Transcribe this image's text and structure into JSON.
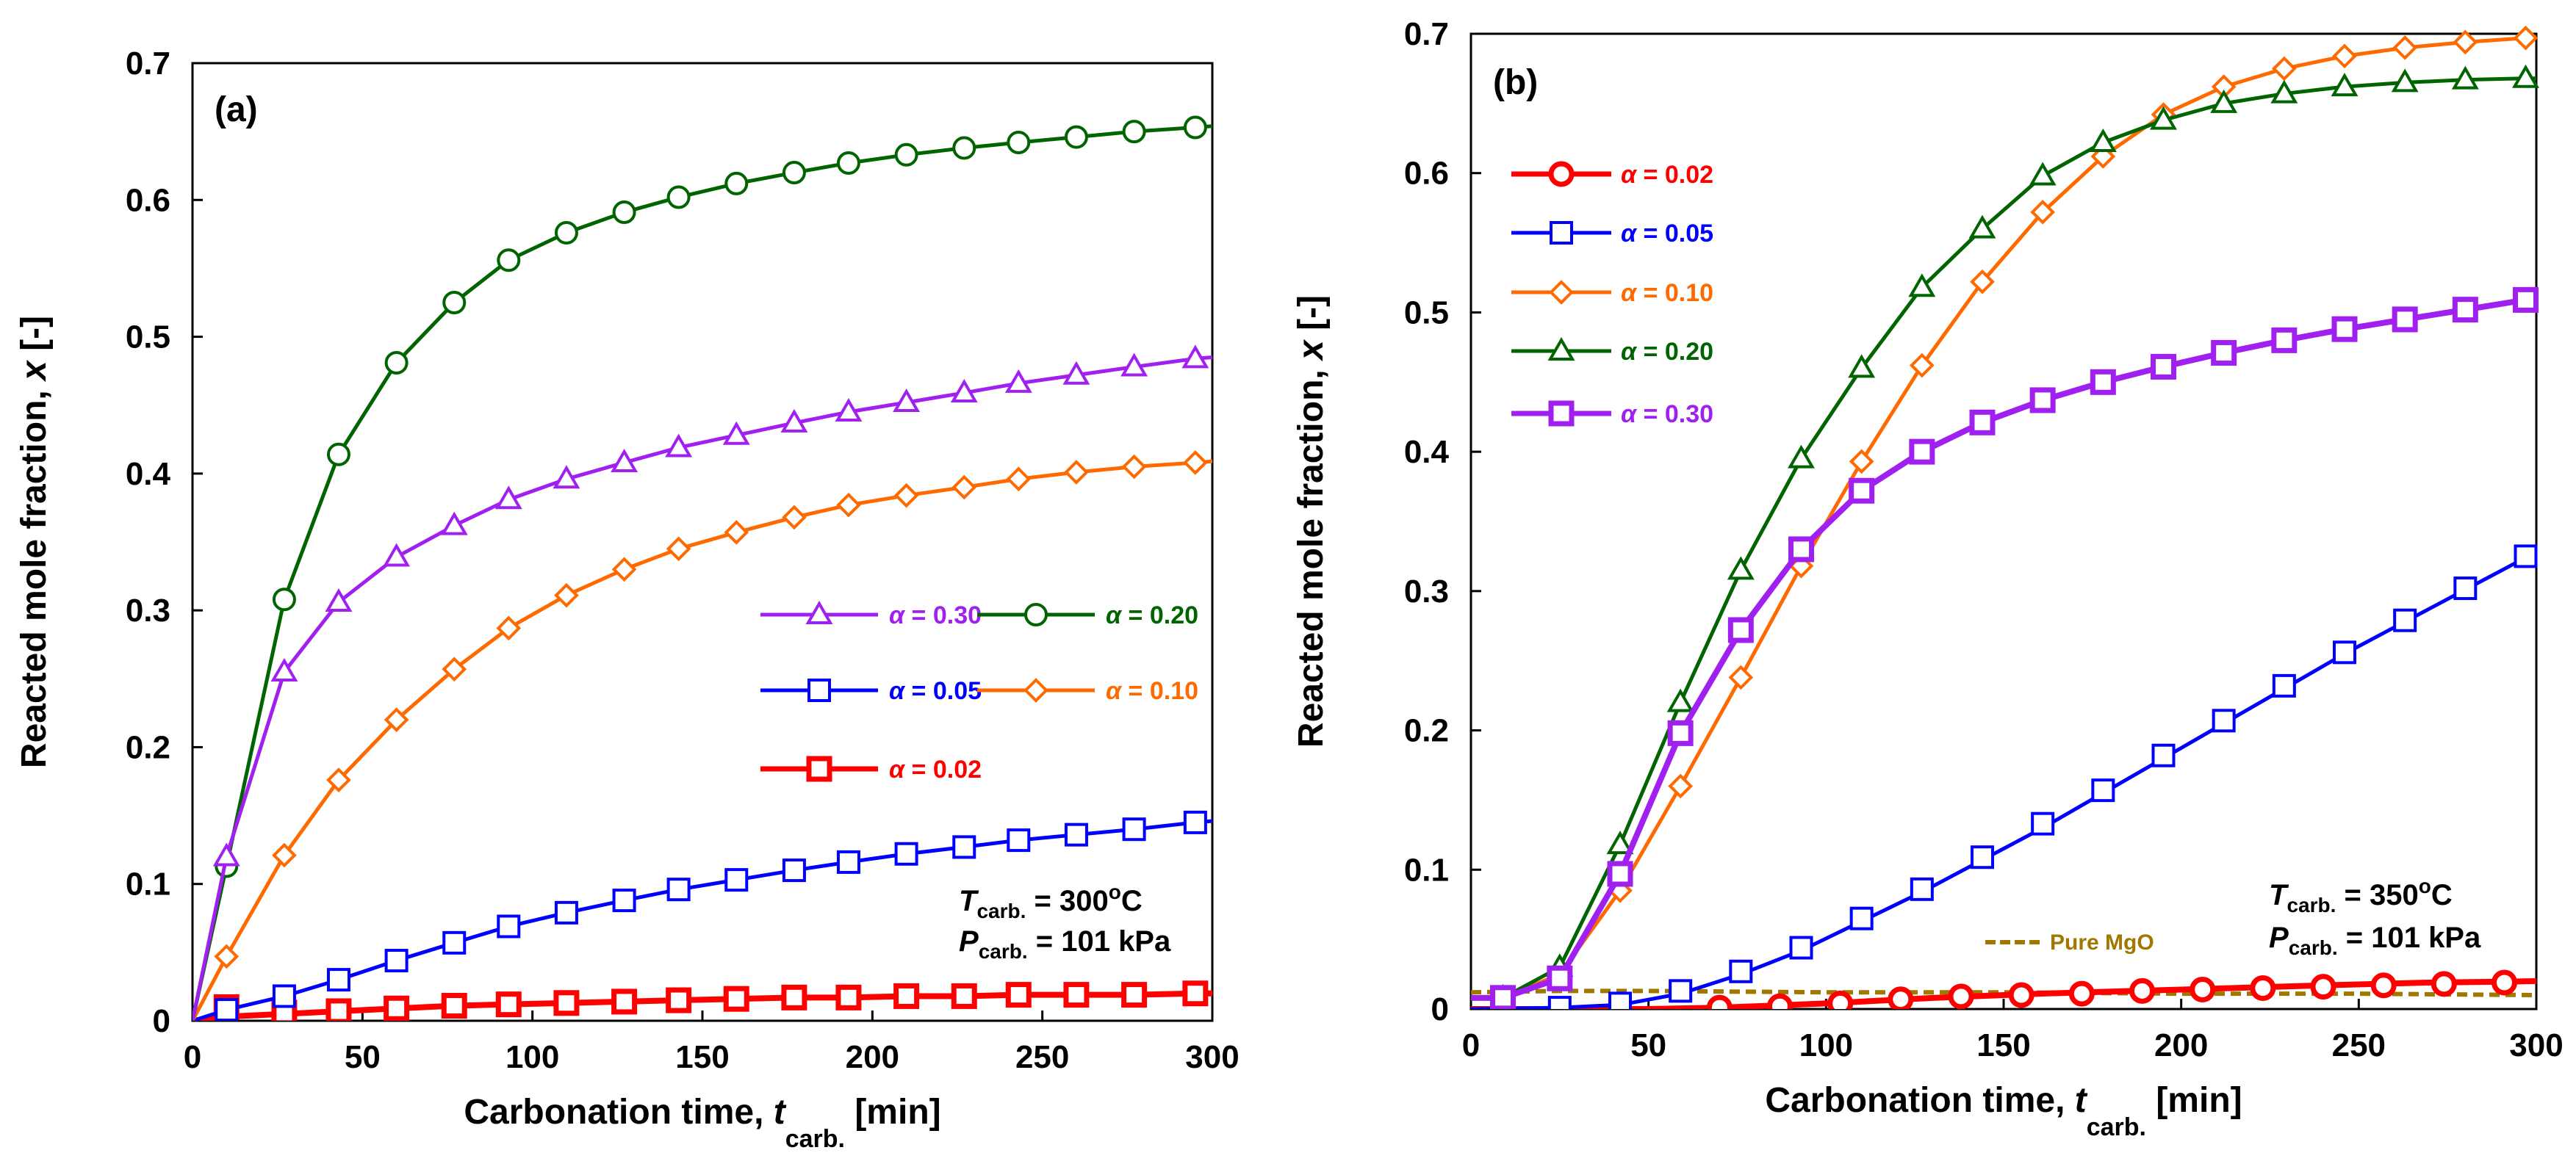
{
  "chart_data": [
    {
      "type": "line",
      "panel_label": "(a)",
      "xlabel": "Carbonation time,",
      "x_var": "t",
      "x_var_sub": "carb.",
      "x_unit": "[min]",
      "ylabel": "Reacted mole fraction,",
      "y_var": "x",
      "y_unit": "[-]",
      "xlim": [
        0,
        300
      ],
      "ylim": [
        0,
        0.7
      ],
      "xticks": [
        "0",
        "50",
        "100",
        "150",
        "200",
        "250",
        "300"
      ],
      "yticks": [
        "0",
        "0.1",
        "0.2",
        "0.3",
        "0.4",
        "0.5",
        "0.6",
        "0.7"
      ],
      "conditions": {
        "temp_var": "T",
        "temp_sub": "carb.",
        "temp_value": "= 300",
        "temp_sup": "o",
        "temp_unit": "C",
        "pres_var": "P",
        "pres_sub": "carb.",
        "pres_value": "= 101 kPa"
      },
      "series": [
        {
          "name": "α = 0.02",
          "alpha_symbol": "α",
          "alpha_value": "= 0.02",
          "color": "#ff0000",
          "marker": "square",
          "thick": true,
          "x": [
            0,
            10,
            27,
            43,
            60,
            77,
            93,
            110,
            127,
            143,
            160,
            177,
            193,
            210,
            227,
            243,
            260,
            277,
            295,
            300
          ],
          "y": [
            0,
            0.003,
            0.005,
            0.007,
            0.009,
            0.011,
            0.012,
            0.013,
            0.014,
            0.015,
            0.016,
            0.017,
            0.017,
            0.018,
            0.018,
            0.019,
            0.019,
            0.019,
            0.02,
            0.02
          ],
          "mx": [
            10,
            27,
            43,
            60,
            77,
            93,
            110,
            127,
            143,
            160,
            177,
            193,
            210,
            227,
            243,
            260,
            277,
            295
          ],
          "my": [
            0.01,
            0.006,
            0.007,
            0.009,
            0.011,
            0.012,
            0.013,
            0.014,
            0.015,
            0.016,
            0.017,
            0.017,
            0.018,
            0.018,
            0.019,
            0.019,
            0.019,
            0.02
          ]
        },
        {
          "name": "α = 0.05",
          "alpha_symbol": "α",
          "alpha_value": "= 0.05",
          "color": "#0000ff",
          "marker": "square",
          "thick": false,
          "x": [
            0,
            10,
            27,
            43,
            60,
            77,
            93,
            110,
            127,
            143,
            160,
            177,
            193,
            210,
            227,
            243,
            260,
            277,
            295,
            300
          ],
          "y": [
            0,
            0.008,
            0.018,
            0.03,
            0.044,
            0.057,
            0.069,
            0.079,
            0.088,
            0.096,
            0.103,
            0.11,
            0.116,
            0.122,
            0.127,
            0.132,
            0.136,
            0.14,
            0.145,
            0.146
          ],
          "mx": [
            10,
            27,
            43,
            60,
            77,
            93,
            110,
            127,
            143,
            160,
            177,
            193,
            210,
            227,
            243,
            260,
            277,
            295
          ],
          "my": [
            0.008,
            0.018,
            0.03,
            0.044,
            0.057,
            0.069,
            0.079,
            0.088,
            0.096,
            0.103,
            0.11,
            0.116,
            0.122,
            0.127,
            0.132,
            0.136,
            0.14,
            0.145
          ]
        },
        {
          "name": "α = 0.10",
          "alpha_symbol": "α",
          "alpha_value": "= 0.10",
          "color": "#ff6a00",
          "marker": "diamond",
          "thick": false,
          "x": [
            0,
            10,
            27,
            43,
            60,
            77,
            93,
            110,
            127,
            143,
            160,
            177,
            193,
            210,
            227,
            243,
            260,
            277,
            295,
            300
          ],
          "y": [
            0,
            0.047,
            0.121,
            0.176,
            0.22,
            0.257,
            0.287,
            0.311,
            0.33,
            0.345,
            0.357,
            0.368,
            0.377,
            0.384,
            0.39,
            0.396,
            0.401,
            0.405,
            0.408,
            0.409
          ],
          "mx": [
            10,
            27,
            43,
            60,
            77,
            93,
            110,
            127,
            143,
            160,
            177,
            193,
            210,
            227,
            243,
            260,
            277,
            295
          ],
          "my": [
            0.047,
            0.121,
            0.176,
            0.22,
            0.257,
            0.287,
            0.311,
            0.33,
            0.345,
            0.357,
            0.368,
            0.377,
            0.384,
            0.39,
            0.396,
            0.401,
            0.405,
            0.408
          ]
        },
        {
          "name": "α = 0.20",
          "alpha_symbol": "α",
          "alpha_value": "= 0.20",
          "color": "#006400",
          "marker": "circle",
          "thick": false,
          "x": [
            0,
            10,
            27,
            43,
            60,
            77,
            93,
            110,
            127,
            143,
            160,
            177,
            193,
            210,
            227,
            243,
            260,
            277,
            295,
            300
          ],
          "y": [
            0,
            0.113,
            0.308,
            0.414,
            0.481,
            0.525,
            0.556,
            0.576,
            0.591,
            0.602,
            0.612,
            0.62,
            0.627,
            0.633,
            0.638,
            0.642,
            0.646,
            0.65,
            0.653,
            0.654
          ],
          "mx": [
            10,
            27,
            43,
            60,
            77,
            93,
            110,
            127,
            143,
            160,
            177,
            193,
            210,
            227,
            243,
            260,
            277,
            295
          ],
          "my": [
            0.113,
            0.308,
            0.414,
            0.481,
            0.525,
            0.556,
            0.576,
            0.591,
            0.602,
            0.612,
            0.62,
            0.627,
            0.633,
            0.638,
            0.642,
            0.646,
            0.65,
            0.653
          ]
        },
        {
          "name": "α = 0.30",
          "alpha_symbol": "α",
          "alpha_value": "= 0.30",
          "color": "#a020f0",
          "marker": "triangle",
          "thick": false,
          "x": [
            0,
            10,
            27,
            43,
            60,
            77,
            93,
            110,
            127,
            143,
            160,
            177,
            193,
            210,
            227,
            243,
            260,
            277,
            295,
            300
          ],
          "y": [
            0,
            0.12,
            0.255,
            0.306,
            0.339,
            0.362,
            0.381,
            0.396,
            0.408,
            0.419,
            0.428,
            0.437,
            0.445,
            0.452,
            0.459,
            0.466,
            0.472,
            0.478,
            0.484,
            0.485
          ],
          "mx": [
            10,
            27,
            43,
            60,
            77,
            93,
            110,
            127,
            143,
            160,
            177,
            193,
            210,
            227,
            243,
            260,
            277,
            295
          ],
          "my": [
            0.12,
            0.255,
            0.306,
            0.339,
            0.362,
            0.381,
            0.396,
            0.408,
            0.419,
            0.428,
            0.437,
            0.445,
            0.452,
            0.459,
            0.466,
            0.472,
            0.478,
            0.484
          ]
        }
      ]
    },
    {
      "type": "line",
      "panel_label": "(b)",
      "xlabel": "Carbonation time,",
      "x_var": "t",
      "x_var_sub": "carb.",
      "x_unit": "[min]",
      "ylabel": "Reacted mole fraction,",
      "y_var": "x",
      "y_unit": "[-]",
      "xlim": [
        0,
        300
      ],
      "ylim": [
        0,
        0.7
      ],
      "xticks": [
        "0",
        "50",
        "100",
        "150",
        "200",
        "250",
        "300"
      ],
      "yticks": [
        "0",
        "0.1",
        "0.2",
        "0.3",
        "0.4",
        "0.5",
        "0.6",
        "0.7"
      ],
      "conditions": {
        "temp_var": "T",
        "temp_sub": "carb.",
        "temp_value": "= 350",
        "temp_sup": "o",
        "temp_unit": "C",
        "pres_var": "P",
        "pres_sub": "carb.",
        "pres_value": "= 101 kPa"
      },
      "reference_line": {
        "name": "Pure MgO",
        "color": "#a07800",
        "x": [
          0,
          25,
          50,
          100,
          150,
          200,
          250,
          300
        ],
        "y": [
          0.012,
          0.013,
          0.013,
          0.012,
          0.012,
          0.011,
          0.011,
          0.01
        ]
      },
      "series": [
        {
          "name": "α = 0.02",
          "alpha_symbol": "α",
          "alpha_value": "= 0.02",
          "color": "#ff0000",
          "marker": "circle",
          "thick": true,
          "x": [
            0,
            50,
            70,
            100,
            130,
            160,
            200,
            240,
            270,
            300
          ],
          "y": [
            0,
            0,
            0.001,
            0.004,
            0.008,
            0.011,
            0.014,
            0.017,
            0.019,
            0.02
          ],
          "mx": [
            70,
            87,
            104,
            121,
            138,
            155,
            172,
            189,
            206,
            223,
            240,
            257,
            274,
            291
          ],
          "my": [
            0.001,
            0.002,
            0.004,
            0.007,
            0.009,
            0.01,
            0.011,
            0.013,
            0.014,
            0.015,
            0.016,
            0.017,
            0.018,
            0.019
          ]
        },
        {
          "name": "α = 0.05",
          "alpha_symbol": "α",
          "alpha_value": "= 0.05",
          "color": "#0000ff",
          "marker": "square",
          "thick": false,
          "x": [
            0,
            25,
            42,
            59,
            76,
            93,
            110,
            127,
            144,
            161,
            178,
            195,
            212,
            229,
            246,
            263,
            280,
            297,
            300
          ],
          "y": [
            0,
            0.001,
            0.003,
            0.011,
            0.025,
            0.042,
            0.063,
            0.084,
            0.107,
            0.13,
            0.155,
            0.18,
            0.205,
            0.23,
            0.255,
            0.278,
            0.301,
            0.324,
            0.33
          ],
          "mx": [
            9,
            25,
            42,
            59,
            76,
            93,
            110,
            127,
            144,
            161,
            178,
            195,
            212,
            229,
            246,
            263,
            280,
            297
          ],
          "my": [
            0.004,
            0.001,
            0.004,
            0.013,
            0.027,
            0.044,
            0.065,
            0.086,
            0.109,
            0.133,
            0.157,
            0.182,
            0.207,
            0.232,
            0.256,
            0.279,
            0.302,
            0.325
          ]
        },
        {
          "name": "α = 0.10",
          "alpha_symbol": "α",
          "alpha_value": "= 0.10",
          "color": "#ff6a00",
          "marker": "diamond",
          "thick": false,
          "x": [
            0,
            9,
            25,
            42,
            59,
            76,
            93,
            110,
            127,
            144,
            161,
            178,
            195,
            212,
            229,
            246,
            263,
            280,
            297,
            300
          ],
          "y": [
            0.008,
            0.008,
            0.025,
            0.085,
            0.16,
            0.238,
            0.318,
            0.393,
            0.462,
            0.522,
            0.572,
            0.612,
            0.642,
            0.662,
            0.675,
            0.684,
            0.69,
            0.694,
            0.697,
            0.698
          ],
          "mx": [
            9,
            25,
            42,
            59,
            76,
            93,
            110,
            127,
            144,
            161,
            178,
            195,
            212,
            229,
            246,
            263,
            280,
            297
          ],
          "my": [
            0.008,
            0.025,
            0.085,
            0.16,
            0.238,
            0.318,
            0.393,
            0.462,
            0.522,
            0.572,
            0.612,
            0.642,
            0.662,
            0.675,
            0.684,
            0.69,
            0.694,
            0.697
          ]
        },
        {
          "name": "α = 0.20",
          "alpha_symbol": "α",
          "alpha_value": "= 0.20",
          "color": "#006400",
          "marker": "triangle",
          "thick": false,
          "x": [
            0,
            9,
            25,
            42,
            59,
            76,
            93,
            110,
            127,
            144,
            161,
            178,
            195,
            212,
            229,
            246,
            263,
            280,
            297,
            300
          ],
          "y": [
            0.008,
            0.008,
            0.03,
            0.118,
            0.22,
            0.315,
            0.395,
            0.46,
            0.518,
            0.56,
            0.598,
            0.622,
            0.638,
            0.65,
            0.657,
            0.662,
            0.665,
            0.667,
            0.668,
            0.668
          ],
          "mx": [
            9,
            25,
            42,
            59,
            76,
            93,
            110,
            127,
            144,
            161,
            178,
            195,
            212,
            229,
            246,
            263,
            280,
            297
          ],
          "my": [
            0.008,
            0.03,
            0.118,
            0.22,
            0.315,
            0.395,
            0.46,
            0.518,
            0.56,
            0.598,
            0.622,
            0.638,
            0.65,
            0.657,
            0.662,
            0.665,
            0.667,
            0.668
          ]
        },
        {
          "name": "α = 0.30",
          "alpha_symbol": "α",
          "alpha_value": "= 0.30",
          "color": "#a020f0",
          "marker": "square",
          "thick": true,
          "x": [
            0,
            9,
            25,
            42,
            59,
            76,
            93,
            110,
            127,
            144,
            161,
            178,
            195,
            212,
            229,
            246,
            263,
            280,
            297,
            300
          ],
          "y": [
            0.008,
            0.008,
            0.022,
            0.097,
            0.198,
            0.272,
            0.33,
            0.372,
            0.4,
            0.421,
            0.437,
            0.45,
            0.461,
            0.471,
            0.48,
            0.488,
            0.495,
            0.502,
            0.509,
            0.51
          ],
          "mx": [
            9,
            25,
            42,
            59,
            76,
            93,
            110,
            127,
            144,
            161,
            178,
            195,
            212,
            229,
            246,
            263,
            280,
            297
          ],
          "my": [
            0.008,
            0.022,
            0.097,
            0.198,
            0.272,
            0.33,
            0.372,
            0.4,
            0.421,
            0.437,
            0.45,
            0.461,
            0.471,
            0.48,
            0.488,
            0.495,
            0.502,
            0.509
          ]
        }
      ]
    }
  ]
}
